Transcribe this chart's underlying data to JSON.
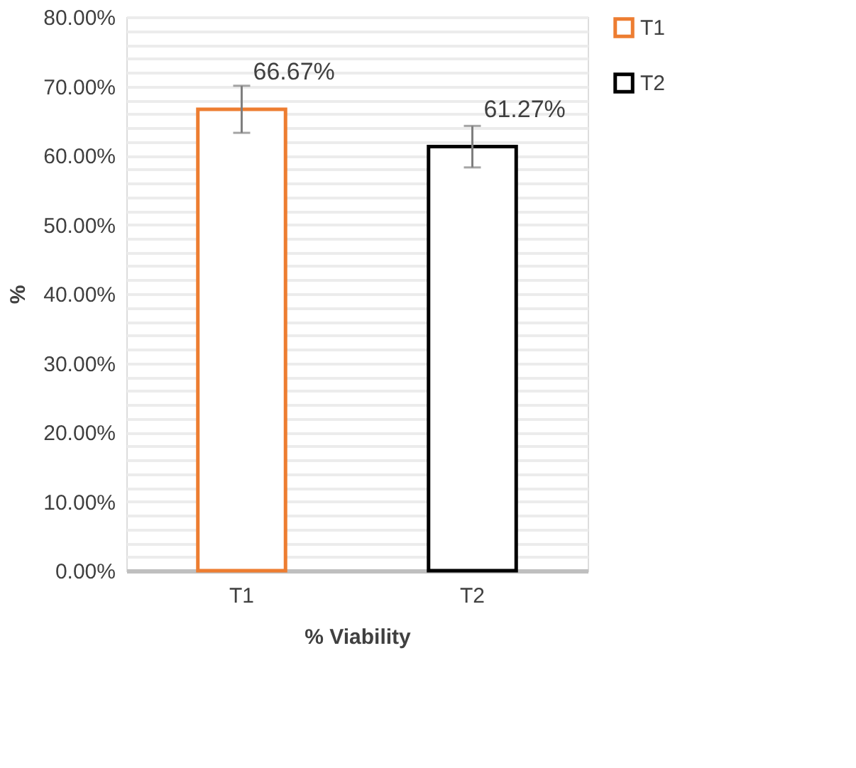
{
  "chart_data": {
    "type": "bar",
    "xlabel": "% Viability",
    "ylabel": "%",
    "categories": [
      "T1",
      "T2"
    ],
    "series": [
      {
        "name": "T1",
        "color": "#ed7d31",
        "values": [
          66.67,
          null
        ],
        "errors": [
          3.4,
          null
        ],
        "value_labels": [
          "66.67%",
          null
        ]
      },
      {
        "name": "T2",
        "color": "#000000",
        "values": [
          null,
          61.27
        ],
        "errors": [
          null,
          3.0
        ],
        "value_labels": [
          null,
          "61.27%"
        ]
      }
    ],
    "ylim": [
      0,
      80
    ],
    "yticks": [
      {
        "value": 0,
        "label": "0.00%"
      },
      {
        "value": 2,
        "label": null
      },
      {
        "value": 4,
        "label": null
      },
      {
        "value": 6,
        "label": null
      },
      {
        "value": 8,
        "label": null
      },
      {
        "value": 10,
        "label": "10.00%"
      },
      {
        "value": 12,
        "label": null
      },
      {
        "value": 14,
        "label": null
      },
      {
        "value": 16,
        "label": null
      },
      {
        "value": 18,
        "label": null
      },
      {
        "value": 20,
        "label": "20.00%"
      },
      {
        "value": 22,
        "label": null
      },
      {
        "value": 24,
        "label": null
      },
      {
        "value": 26,
        "label": null
      },
      {
        "value": 28,
        "label": null
      },
      {
        "value": 30,
        "label": "30.00%"
      },
      {
        "value": 32,
        "label": null
      },
      {
        "value": 34,
        "label": null
      },
      {
        "value": 36,
        "label": null
      },
      {
        "value": 38,
        "label": null
      },
      {
        "value": 40,
        "label": "40.00%"
      },
      {
        "value": 42,
        "label": null
      },
      {
        "value": 44,
        "label": null
      },
      {
        "value": 46,
        "label": null
      },
      {
        "value": 48,
        "label": null
      },
      {
        "value": 50,
        "label": "50.00%"
      },
      {
        "value": 52,
        "label": null
      },
      {
        "value": 54,
        "label": null
      },
      {
        "value": 56,
        "label": null
      },
      {
        "value": 58,
        "label": null
      },
      {
        "value": 60,
        "label": "60.00%"
      },
      {
        "value": 62,
        "label": null
      },
      {
        "value": 64,
        "label": null
      },
      {
        "value": 66,
        "label": null
      },
      {
        "value": 68,
        "label": null
      },
      {
        "value": 70,
        "label": "70.00%"
      },
      {
        "value": 72,
        "label": null
      },
      {
        "value": 74,
        "label": null
      },
      {
        "value": 76,
        "label": null
      },
      {
        "value": 78,
        "label": null
      },
      {
        "value": 80,
        "label": "80.00%"
      }
    ],
    "grid": "y",
    "legend": "right"
  }
}
